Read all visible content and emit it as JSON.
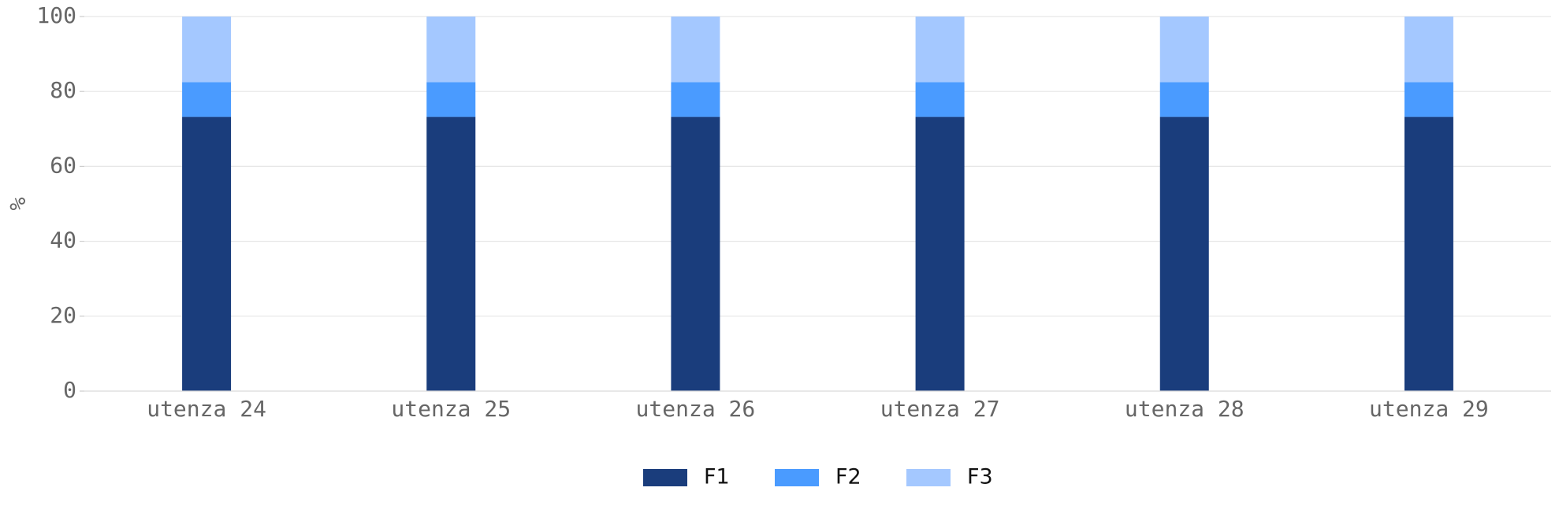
{
  "chart_data": {
    "type": "bar",
    "stacked": true,
    "ylabel": "%",
    "categories": [
      "utenza 24",
      "utenza 25",
      "utenza 26",
      "utenza 27",
      "utenza 28",
      "utenza 29"
    ],
    "series": [
      {
        "name": "F1",
        "color": "#1a3d7c",
        "values": [
          73.2,
          73.2,
          73.2,
          73.2,
          73.2,
          73.2
        ]
      },
      {
        "name": "F2",
        "color": "#4a9bff",
        "values": [
          9.3,
          9.3,
          9.3,
          9.3,
          9.3,
          9.3
        ]
      },
      {
        "name": "F3",
        "color": "#a4c8ff",
        "values": [
          17.5,
          17.5,
          17.5,
          17.5,
          17.5,
          17.5
        ]
      }
    ],
    "ylim": [
      0,
      100
    ],
    "yticks": [
      0,
      20,
      40,
      60,
      80,
      100
    ],
    "grid": true,
    "legend": "bottom"
  }
}
